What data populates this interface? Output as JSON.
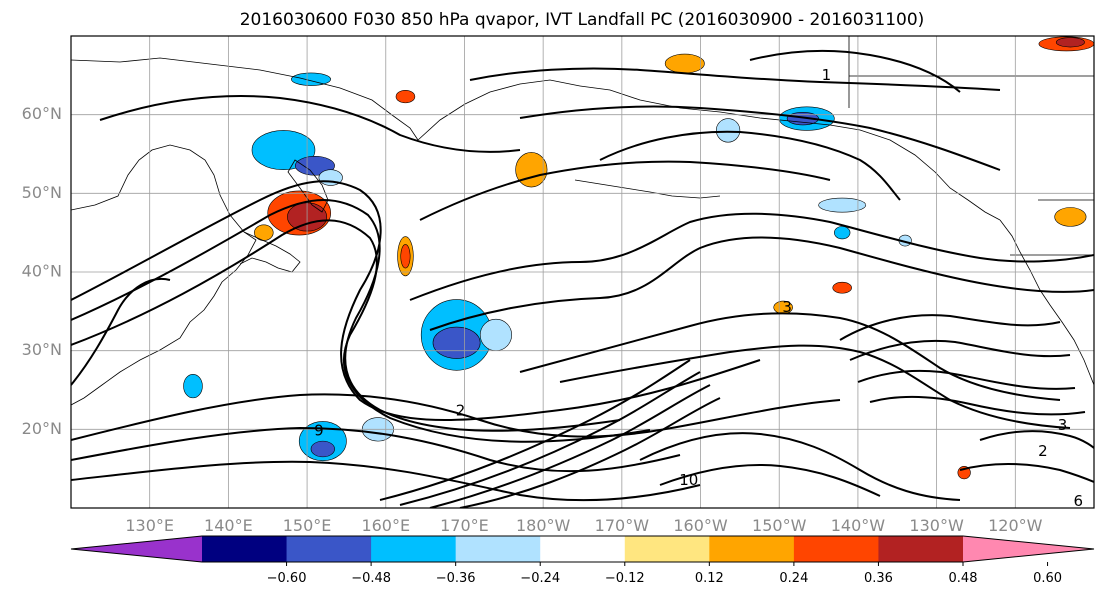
{
  "title": "2016030600 F030 850 hPa qvapor, IVT Landfall PC (2016030900 - 2016031100)",
  "map": {
    "lon_range": [
      120,
      250
    ],
    "lat_range": [
      10,
      70
    ],
    "lat_ticks": [
      {
        "value": 20,
        "label": "20°N"
      },
      {
        "value": 30,
        "label": "30°N"
      },
      {
        "value": 40,
        "label": "40°N"
      },
      {
        "value": 50,
        "label": "50°N"
      },
      {
        "value": 60,
        "label": "60°N"
      }
    ],
    "lon_ticks": [
      {
        "value": 130,
        "label": "130°E"
      },
      {
        "value": 140,
        "label": "140°E"
      },
      {
        "value": 150,
        "label": "150°E"
      },
      {
        "value": 160,
        "label": "160°E"
      },
      {
        "value": 170,
        "label": "170°E"
      },
      {
        "value": 180,
        "label": "180°W"
      },
      {
        "value": 190,
        "label": "170°W"
      },
      {
        "value": 200,
        "label": "160°W"
      },
      {
        "value": 210,
        "label": "150°W"
      },
      {
        "value": 220,
        "label": "140°W"
      },
      {
        "value": 230,
        "label": "130°W"
      },
      {
        "value": 240,
        "label": "120°W"
      }
    ],
    "gridlines": true,
    "contour_labels": [
      {
        "text": "1",
        "lon": 216,
        "lat": 65
      },
      {
        "text": "2",
        "lon": 169.5,
        "lat": 22.3
      },
      {
        "text": "9",
        "lon": 151.5,
        "lat": 19.8
      },
      {
        "text": "3",
        "lon": 246,
        "lat": 20.5
      },
      {
        "text": "2",
        "lon": 243.5,
        "lat": 17.2
      },
      {
        "text": "6",
        "lon": 248,
        "lat": 10.8
      },
      {
        "text": "10",
        "lon": 198.5,
        "lat": 13.5
      },
      {
        "text": "3",
        "lon": 211,
        "lat": 35.5
      }
    ],
    "anomaly_patches": [
      {
        "level": -0.36,
        "lon": 147,
        "lat": 55.5,
        "rx": 4,
        "ry": 2.5
      },
      {
        "level": -0.48,
        "lon": 151,
        "lat": 53.5,
        "rx": 2.5,
        "ry": 1.2
      },
      {
        "level": -0.24,
        "lon": 153,
        "lat": 52,
        "rx": 1.5,
        "ry": 1
      },
      {
        "level": 0.36,
        "lon": 149,
        "lat": 47.5,
        "rx": 4,
        "ry": 2.8
      },
      {
        "level": 0.48,
        "lon": 150,
        "lat": 47,
        "rx": 2.5,
        "ry": 1.8
      },
      {
        "level": 0.24,
        "lon": 144.5,
        "lat": 45,
        "rx": 1.2,
        "ry": 1
      },
      {
        "level": 0.24,
        "lon": 162.5,
        "lat": 42,
        "rx": 1,
        "ry": 2.5
      },
      {
        "level": 0.36,
        "lon": 162.5,
        "lat": 42,
        "rx": 0.6,
        "ry": 1.5
      },
      {
        "level": -0.36,
        "lon": 169,
        "lat": 32,
        "rx": 4.5,
        "ry": 4.5
      },
      {
        "level": -0.48,
        "lon": 169,
        "lat": 31,
        "rx": 3,
        "ry": 2
      },
      {
        "level": -0.24,
        "lon": 174,
        "lat": 32,
        "rx": 2,
        "ry": 2
      },
      {
        "level": -0.36,
        "lon": 152,
        "lat": 18.5,
        "rx": 3,
        "ry": 2.5
      },
      {
        "level": -0.48,
        "lon": 152,
        "lat": 17.5,
        "rx": 1.5,
        "ry": 1
      },
      {
        "level": -0.24,
        "lon": 159,
        "lat": 20,
        "rx": 2,
        "ry": 1.5
      },
      {
        "level": -0.36,
        "lon": 135.5,
        "lat": 25.5,
        "rx": 1.2,
        "ry": 1.5
      },
      {
        "level": 0.24,
        "lon": 178.5,
        "lat": 53,
        "rx": 2,
        "ry": 2.2
      },
      {
        "level": 0.36,
        "lon": 162.5,
        "lat": 62.3,
        "rx": 1.2,
        "ry": 0.8
      },
      {
        "level": -0.36,
        "lon": 150.5,
        "lat": 64.5,
        "rx": 2.5,
        "ry": 0.8
      },
      {
        "level": -0.36,
        "lon": 213.5,
        "lat": 59.5,
        "rx": 3.5,
        "ry": 1.5
      },
      {
        "level": -0.48,
        "lon": 213,
        "lat": 59.5,
        "rx": 2,
        "ry": 0.8
      },
      {
        "level": -0.24,
        "lon": 218,
        "lat": 48.5,
        "rx": 3,
        "ry": 0.9
      },
      {
        "level": -0.36,
        "lon": 218,
        "lat": 45,
        "rx": 1,
        "ry": 0.8
      },
      {
        "level": 0.36,
        "lon": 246.5,
        "lat": 69,
        "rx": 3.5,
        "ry": 0.9
      },
      {
        "level": 0.48,
        "lon": 247,
        "lat": 69.2,
        "rx": 1.8,
        "ry": 0.6
      },
      {
        "level": 0.24,
        "lon": 198,
        "lat": 66.5,
        "rx": 2.5,
        "ry": 1.2
      },
      {
        "level": 0.36,
        "lon": 218,
        "lat": 38,
        "rx": 1.2,
        "ry": 0.7
      },
      {
        "level": 0.24,
        "lon": 210.5,
        "lat": 35.5,
        "rx": 1.2,
        "ry": 0.8
      },
      {
        "level": -0.24,
        "lon": 203.5,
        "lat": 58,
        "rx": 1.5,
        "ry": 1.5
      },
      {
        "level": 0.24,
        "lon": 247,
        "lat": 47,
        "rx": 2,
        "ry": 1.2
      },
      {
        "level": -0.24,
        "lon": 226,
        "lat": 44,
        "rx": 0.8,
        "ry": 0.7
      },
      {
        "level": 0.36,
        "lon": 233.5,
        "lat": 14.5,
        "rx": 0.8,
        "ry": 0.8
      }
    ]
  },
  "colorbar": {
    "colors": [
      "#9932cc",
      "#000080",
      "#3a56c8",
      "#00bfff",
      "#b0e2ff",
      "#ffffff",
      "#ffe680",
      "#ffa500",
      "#ff4500",
      "#b22222",
      "#ff88b0"
    ],
    "tick_values": [
      "−0.60",
      "−0.48",
      "−0.36",
      "−0.24",
      "−0.12",
      "0.12",
      "0.24",
      "0.36",
      "0.48",
      "0.60"
    ],
    "levels": [
      -0.6,
      -0.48,
      -0.36,
      -0.24,
      -0.12,
      0.12,
      0.24,
      0.36,
      0.48,
      0.6
    ]
  }
}
